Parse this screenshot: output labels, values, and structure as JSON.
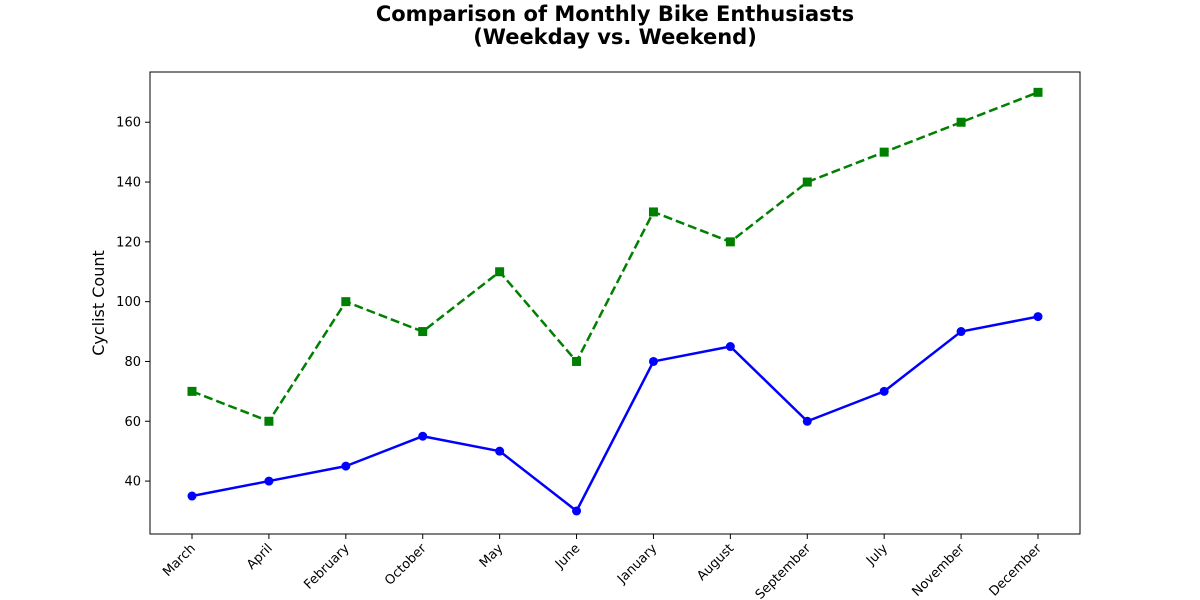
{
  "chart_data": {
    "type": "line",
    "title_line1": "Comparison of Monthly Bike Enthusiasts",
    "title_line2": "(Weekday vs. Weekend)",
    "xlabel": "",
    "ylabel": "Cyclist Count",
    "categories": [
      "March",
      "April",
      "February",
      "October",
      "May",
      "June",
      "January",
      "August",
      "September",
      "July",
      "November",
      "December"
    ],
    "ylim": [
      22.3,
      176.8
    ],
    "yticks": [
      40,
      60,
      80,
      100,
      120,
      140,
      160
    ],
    "grid": false,
    "legend": "none",
    "series": [
      {
        "values": [
          35,
          40,
          45,
          55,
          50,
          30,
          80,
          85,
          60,
          70,
          90,
          95
        ],
        "color": "#0000ff",
        "line_style": "solid",
        "marker": "circle"
      },
      {
        "values": [
          70,
          60,
          100,
          90,
          110,
          80,
          130,
          120,
          140,
          150,
          160,
          170
        ],
        "color": "#008000",
        "line_style": "dashed",
        "marker": "square"
      }
    ]
  }
}
